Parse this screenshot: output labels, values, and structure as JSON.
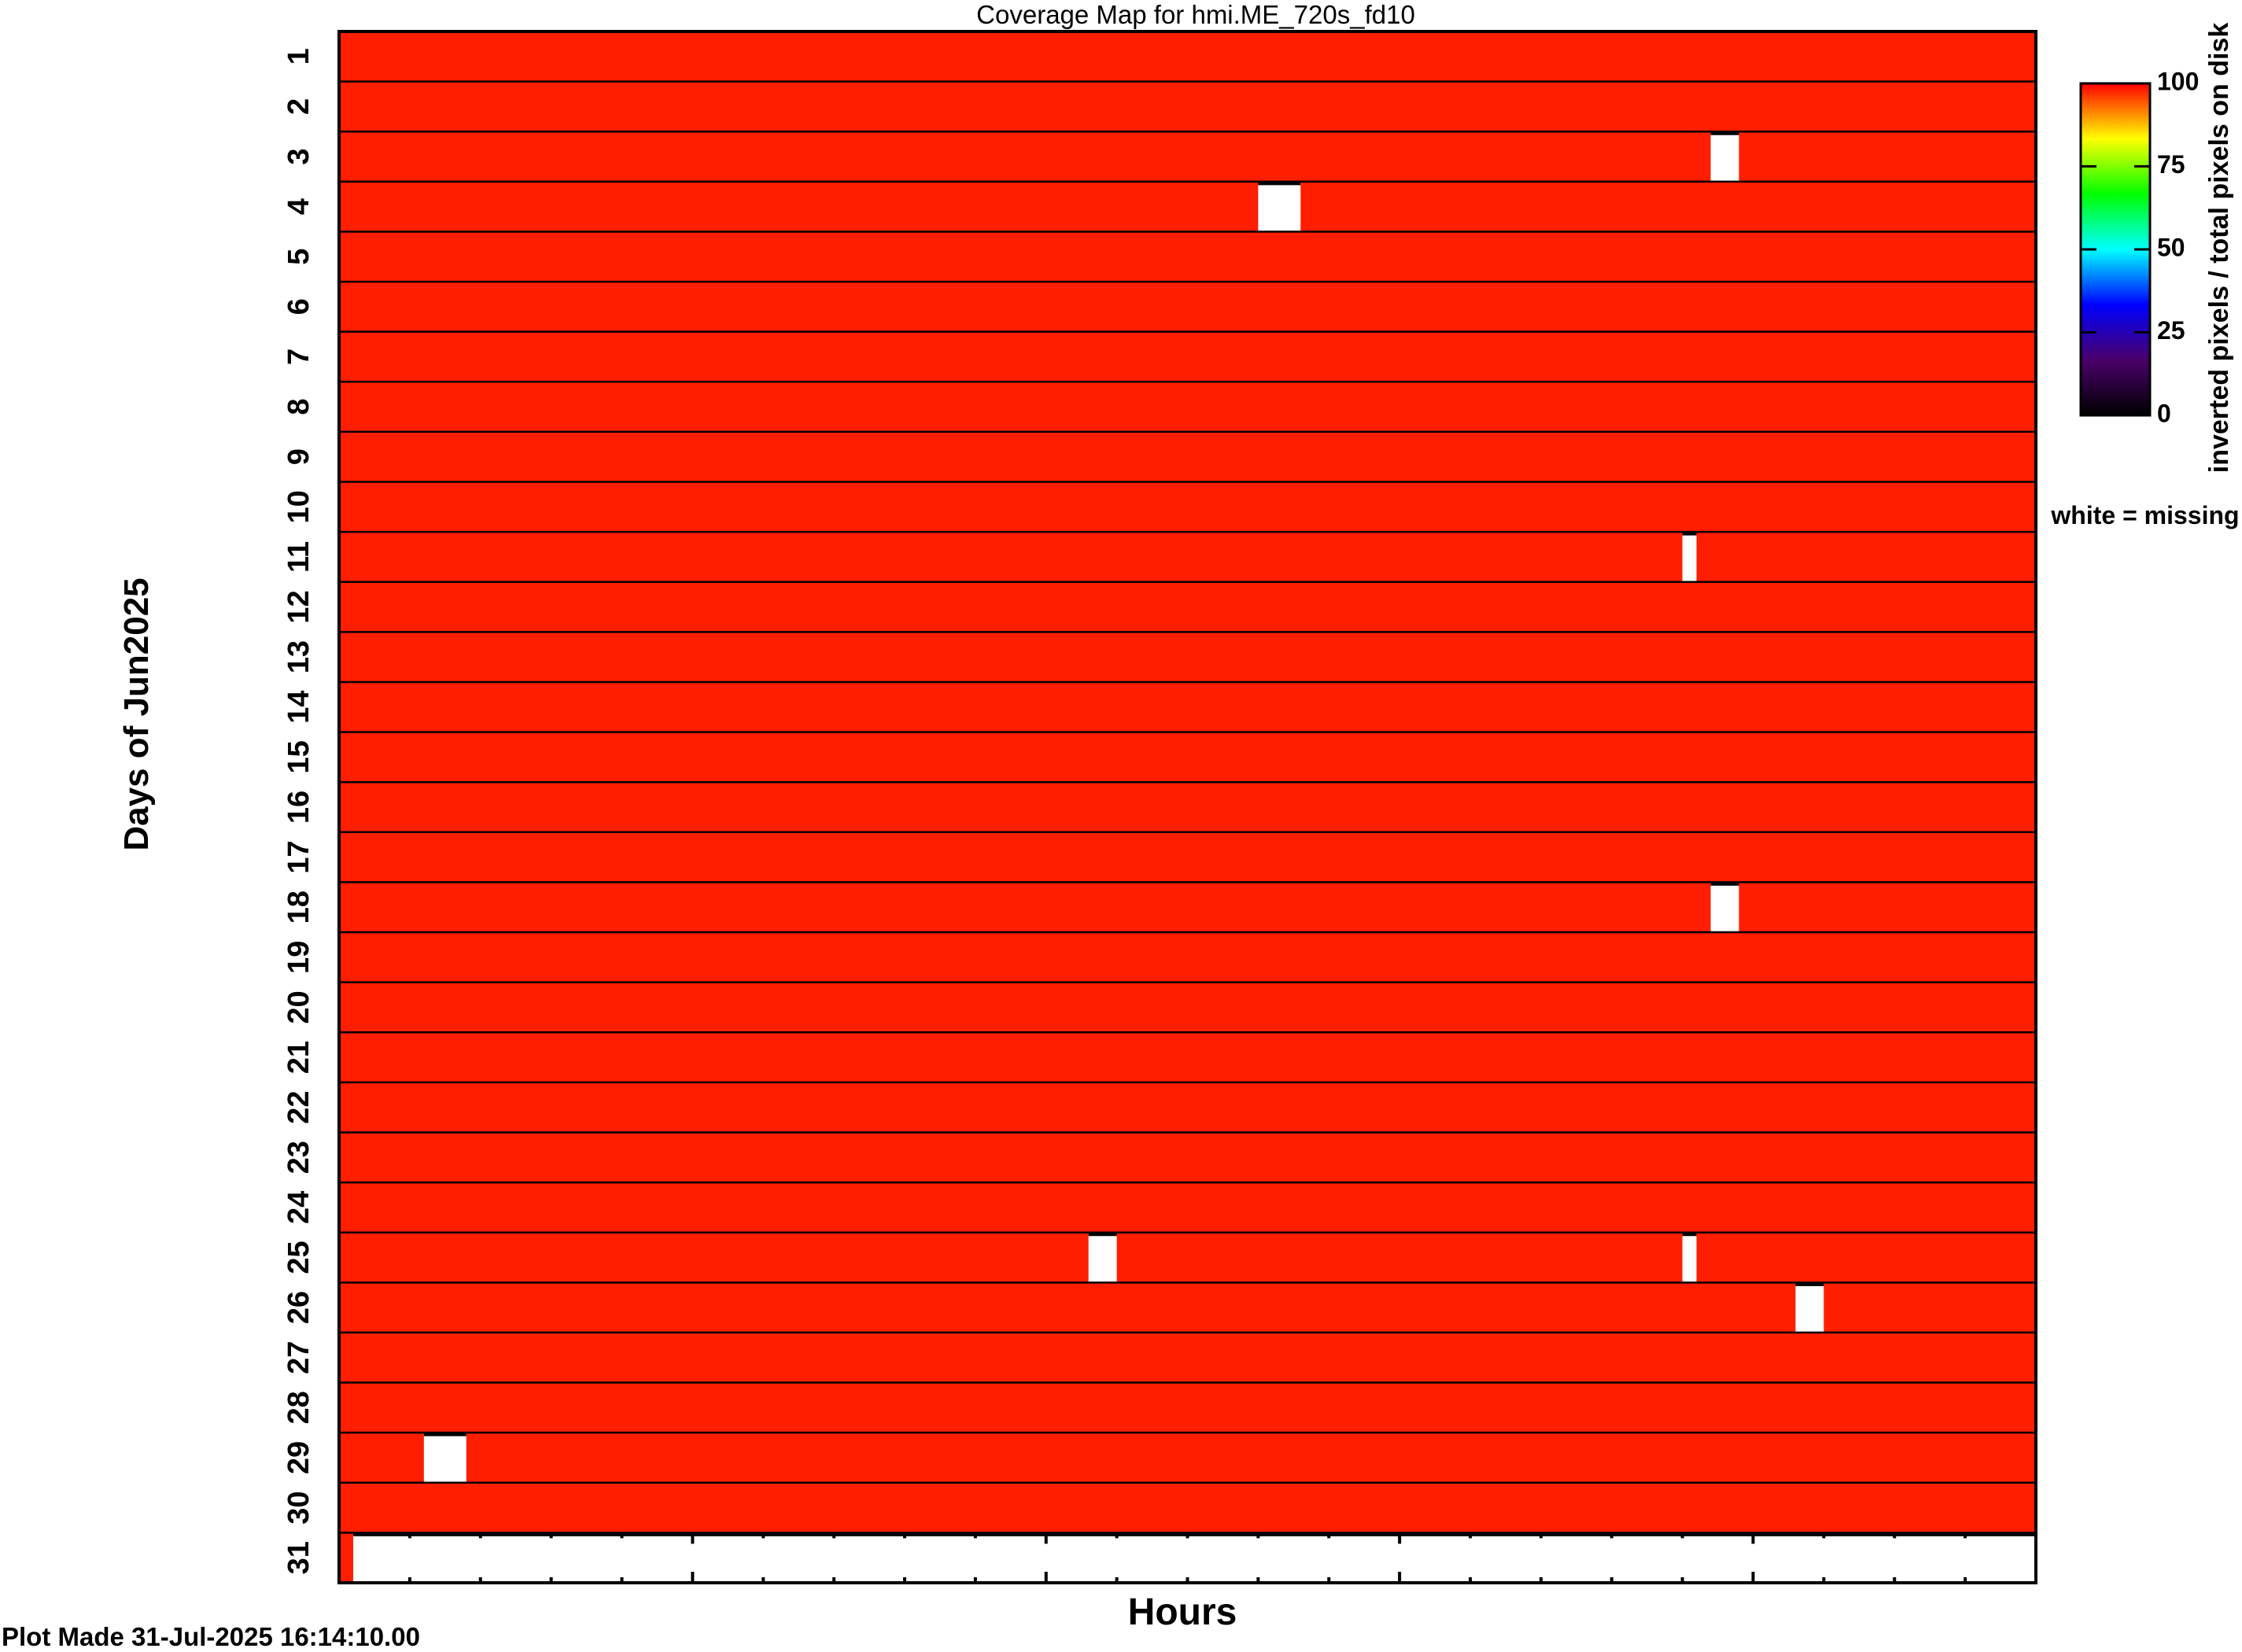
{
  "chart_data": {
    "type": "heatmap",
    "title": "Coverage Map for hmi.ME_720s_fd10",
    "xlabel": "Hours",
    "ylabel": "Days of Jun2025",
    "xlim": [
      0,
      24
    ],
    "x_major_tick_step": 5,
    "x_minor_tick_step": 1,
    "x_tick_labels_shown": false,
    "days": [
      1,
      2,
      3,
      4,
      5,
      6,
      7,
      8,
      9,
      10,
      11,
      12,
      13,
      14,
      15,
      16,
      17,
      18,
      19,
      20,
      21,
      22,
      23,
      24,
      25,
      26,
      27,
      28,
      29,
      30,
      31
    ],
    "default_value": 100,
    "missing_intervals": [
      {
        "day": 3,
        "start_hour": 19.4,
        "end_hour": 19.8
      },
      {
        "day": 4,
        "start_hour": 13.0,
        "end_hour": 13.6
      },
      {
        "day": 11,
        "start_hour": 19.0,
        "end_hour": 19.2
      },
      {
        "day": 18,
        "start_hour": 19.4,
        "end_hour": 19.8
      },
      {
        "day": 25,
        "start_hour": 10.6,
        "end_hour": 11.0
      },
      {
        "day": 25,
        "start_hour": 19.0,
        "end_hour": 19.2
      },
      {
        "day": 26,
        "start_hour": 20.6,
        "end_hour": 21.0
      },
      {
        "day": 29,
        "start_hour": 1.2,
        "end_hour": 1.8
      },
      {
        "day": 31,
        "start_hour": 0.2,
        "end_hour": 24
      }
    ],
    "colorbar": {
      "label": "inverted pixels / total pixels on disk",
      "range": [
        0,
        100
      ],
      "ticks": [
        "0",
        "25",
        "50",
        "75",
        "100"
      ],
      "colormap": [
        "#000000",
        "#4a006a",
        "#0000ff",
        "#00ffff",
        "#00ff00",
        "#ffff00",
        "#ff0000"
      ]
    },
    "missing_note": "white = missing",
    "colors": {
      "full": "#ff1e00",
      "missing": "#ffffff"
    }
  },
  "footer": {
    "plot_made": "Plot Made 31-Jul-2025 16:14:10.00"
  }
}
